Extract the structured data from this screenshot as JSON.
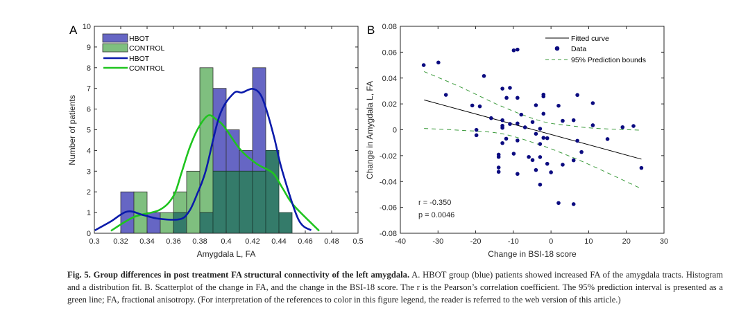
{
  "figure": {
    "caption_bold": "Fig. 5. Group differences in post treatment FA structural connectivity of the left amygdala.",
    "caption_rest": " A. HBOT group (blue) patients showed increased FA of the amygdala tracts. Histogram and a distribution fit. B. Scatterplot of the change in FA, and the change in the BSI-18 score. The r is the Pearson’s correlation coefficient. The 95% prediction interval is presented as a green line; FA, fractional anisotropy. (For interpretation of the references to color in this figure legend, the reader is referred to the web version of this article.)"
  },
  "colors": {
    "hbot_bar": "#6666c4",
    "control_bar": "#7fbf7f",
    "overlap_bar": "#347b6a",
    "hbot_line": "#0a1aaa",
    "control_line": "#1fc41f",
    "scatter_point": "#0b0b80",
    "fit_line": "#000000",
    "bounds_line": "#3a9a3a"
  },
  "chart_data": [
    {
      "panel": "A",
      "type": "bar",
      "title": "",
      "xlabel": "Amygdala L, FA",
      "ylabel": "Number of patients",
      "xlim": [
        0.3,
        0.5
      ],
      "ylim": [
        0,
        10
      ],
      "xticks": [
        0.3,
        0.32,
        0.34,
        0.36,
        0.38,
        0.4,
        0.42,
        0.44,
        0.46,
        0.48,
        0.5
      ],
      "xtick_labels": [
        "0.3",
        "0.32",
        "0.34",
        "0.36",
        "0.38",
        "0.4",
        "0.42",
        "0.44",
        "0.46",
        "0.48",
        "0.5"
      ],
      "yticks": [
        0,
        1,
        2,
        3,
        4,
        5,
        6,
        7,
        8,
        9,
        10
      ],
      "ytick_labels": [
        "0",
        "1",
        "2",
        "3",
        "4",
        "5",
        "6",
        "7",
        "8",
        "9",
        "10"
      ],
      "bin_width": 0.01,
      "bin_edges_left": [
        0.32,
        0.33,
        0.34,
        0.35,
        0.36,
        0.37,
        0.38,
        0.39,
        0.4,
        0.41,
        0.42,
        0.43,
        0.44
      ],
      "series": [
        {
          "name": "HBOT",
          "kind": "histogram",
          "values": [
            2,
            0,
            1,
            0,
            1,
            0,
            1,
            7,
            5,
            4,
            8,
            4,
            1
          ]
        },
        {
          "name": "CONTROL",
          "kind": "histogram",
          "values": [
            0,
            2,
            0,
            1,
            2,
            3,
            8,
            3,
            3,
            3,
            3,
            4,
            1
          ]
        },
        {
          "name": "HBOT",
          "kind": "line",
          "x": [
            0.3004,
            0.312,
            0.325,
            0.337,
            0.349,
            0.365,
            0.372,
            0.378,
            0.3845,
            0.395,
            0.4056,
            0.412,
            0.4197,
            0.4255,
            0.4302,
            0.4365,
            0.4425,
            0.4547,
            0.4644
          ],
          "y": [
            0.14,
            0.55,
            1.05,
            0.88,
            0.7,
            0.68,
            1.07,
            1.9,
            3.02,
            5.69,
            6.76,
            6.8,
            6.98,
            6.75,
            6.03,
            4.6,
            3.02,
            0.68,
            0.14
          ]
        },
        {
          "name": "CONTROL",
          "kind": "line",
          "x": [
            0.3126,
            0.3302,
            0.3495,
            0.36,
            0.366,
            0.3723,
            0.379,
            0.3863,
            0.3925,
            0.3986,
            0.4109,
            0.4232,
            0.4354,
            0.443,
            0.4512,
            0.4705
          ],
          "y": [
            0.12,
            0.79,
            1.13,
            1.8,
            2.9,
            4.14,
            5.1,
            5.69,
            5.5,
            5.14,
            4.03,
            3.35,
            2.91,
            2.15,
            1.35,
            0.12
          ]
        }
      ],
      "legend": [
        "HBOT",
        "CONTROL",
        "HBOT",
        "CONTROL"
      ],
      "legend_position": "top-left",
      "panel_label": "A"
    },
    {
      "panel": "B",
      "type": "scatter",
      "title": "",
      "xlabel": "Change in BSI-18 score",
      "ylabel": "Change in Amygdala L, FA",
      "xlim": [
        -40,
        30
      ],
      "ylim": [
        -0.08,
        0.08
      ],
      "xticks": [
        -40,
        -30,
        -20,
        -10,
        0,
        10,
        20,
        30
      ],
      "xtick_labels": [
        "-40",
        "-30",
        "-20",
        "-10",
        "0",
        "10",
        "20",
        "30"
      ],
      "yticks": [
        -0.08,
        -0.06,
        -0.04,
        -0.02,
        0,
        0.02,
        0.04,
        0.06,
        0.08
      ],
      "ytick_labels": [
        "-0.08",
        "-0.06",
        "-0.04",
        "-0.02",
        "0",
        "0.02",
        "0.04",
        "0.06",
        "0.08"
      ],
      "series": [
        {
          "name": "Data",
          "kind": "points",
          "x": [
            -33.8,
            -29.9,
            -17.8,
            -27.9,
            -12.9,
            -10.9,
            -11.8,
            -8.9,
            -2.0,
            -2.0,
            -20.9,
            -18.9,
            -4.0,
            7.0,
            11.1,
            2.0,
            -15.9,
            -7.9,
            -2.0,
            -12.9,
            -12.9,
            -12.9,
            -10.9,
            -8.9,
            -4.9,
            -6.9,
            -2.9,
            3.1,
            6.0,
            11.1,
            19.0,
            21.9,
            -19.8,
            -19.8,
            -4.0,
            -2.0,
            -1.0,
            -11.9,
            -8.9,
            7.0,
            15.0,
            -12.9,
            -2.9,
            8.1,
            -13.9,
            -13.9,
            -9.9,
            -5.9,
            -4.9,
            -2.9,
            -1.0,
            3.1,
            6.0,
            -13.9,
            -13.9,
            -8.9,
            -4.0,
            0.0,
            -2.9,
            24.0,
            2.0,
            6.0,
            -9.9,
            -8.9
          ],
          "y": [
            0.05,
            0.052,
            0.0416,
            0.027,
            0.0318,
            0.0324,
            0.0247,
            0.0247,
            0.0272,
            0.0258,
            0.0188,
            0.0181,
            0.019,
            0.0269,
            0.0206,
            0.0186,
            0.009,
            0.0117,
            0.0124,
            0.0074,
            0.0031,
            0.0015,
            0.0045,
            0.0049,
            0.006,
            0.0019,
            0.0008,
            0.0069,
            0.0074,
            0.0035,
            0.002,
            0.0029,
            -0.0001,
            -0.0042,
            -0.0031,
            -0.0062,
            -0.0065,
            -0.0069,
            -0.0083,
            -0.0085,
            -0.0072,
            -0.0103,
            -0.011,
            -0.0172,
            -0.0192,
            -0.021,
            -0.0185,
            -0.021,
            -0.0234,
            -0.0211,
            -0.0263,
            -0.027,
            -0.0236,
            -0.0292,
            -0.0325,
            -0.0341,
            -0.0311,
            -0.0329,
            -0.0424,
            -0.0295,
            -0.0566,
            -0.0575,
            0.0614,
            0.062
          ]
        },
        {
          "name": "Fitted curve",
          "kind": "line",
          "x": [
            -33.7,
            24.0
          ],
          "y": [
            0.0231,
            -0.0227
          ]
        },
        {
          "name": "95% Prediction bounds",
          "kind": "dashed",
          "x": [
            -33.7,
            -24,
            -13,
            -2.6,
            5,
            11,
            18,
            24.0
          ],
          "y": [
            0.045,
            0.033,
            0.018,
            0.0067,
            0.0032,
            0.0013,
            0.0003,
            -0.0003
          ]
        },
        {
          "name": "95% Prediction bounds (lower)",
          "kind": "dashed",
          "x": [
            -33.7,
            -24,
            -13,
            -2.6,
            5,
            9.7,
            17,
            24.0
          ],
          "y": [
            0.001,
            -0.0004,
            -0.0031,
            -0.012,
            -0.0205,
            -0.0263,
            -0.036,
            -0.0456
          ]
        }
      ],
      "legend": [
        "Fitted curve",
        "Data",
        "95% Prediction bounds"
      ],
      "legend_position": "top-right",
      "annotations": [
        "r = -0.350",
        "p = 0.0046"
      ],
      "panel_label": "B"
    }
  ]
}
